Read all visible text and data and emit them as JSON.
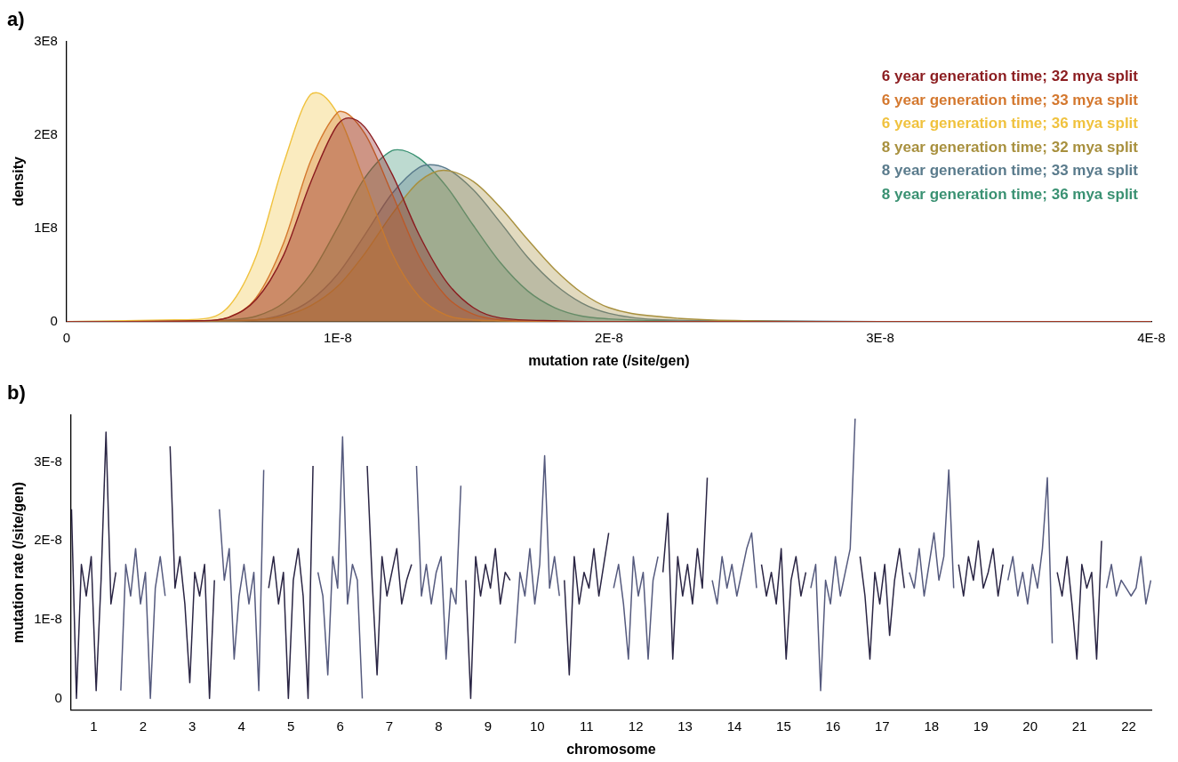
{
  "chart_data": [
    {
      "type": "area",
      "title": "a)",
      "xlabel": "mutation rate (/site/gen)",
      "ylabel": "density",
      "legend": "top right",
      "xlim": [
        0,
        4e-08
      ],
      "ylim": [
        0,
        300000000.0
      ],
      "xticks": [
        0,
        {
          "value": 1e-08,
          "label": "1E-8"
        },
        {
          "value": 2e-08,
          "label": "2E-8"
        },
        {
          "value": 3e-08,
          "label": "3E-8"
        },
        {
          "value": 4e-08,
          "label": "4E-8"
        }
      ],
      "yticks": [
        0,
        {
          "value": 100000000.0,
          "label": "1E8"
        },
        {
          "value": 200000000.0,
          "label": "2E8"
        },
        {
          "value": 300000000.0,
          "label": "3E8"
        }
      ],
      "series": [
        {
          "name": "6 year generation time; 32 mya split",
          "color": "#8b1c1f",
          "x": [
            0,
            5e-09,
            6e-09,
            7e-09,
            8e-09,
            9e-09,
            1e-08,
            1.04e-08,
            1.1e-08,
            1.2e-08,
            1.3e-08,
            1.4e-08,
            1.5e-08,
            1.6e-08,
            1.8e-08,
            2e-08,
            4e-08
          ],
          "values": [
            0,
            1000000.0,
            5000000.0,
            24000000.0,
            71000000.0,
            149000000.0,
            211000000.0,
            218000000.0,
            208000000.0,
            158000000.0,
            93000000.0,
            43000000.0,
            15000000.0,
            4000000.0,
            1000000.0,
            0,
            0
          ]
        },
        {
          "name": "6 year generation time; 33 mya split",
          "color": "#d4782e",
          "x": [
            0,
            5e-09,
            6e-09,
            7e-09,
            8e-09,
            9e-09,
            1e-08,
            1.01e-08,
            1.1e-08,
            1.2e-08,
            1.3e-08,
            1.4e-08,
            1.5e-08,
            1.6e-08,
            1.8e-08,
            2e-08,
            4e-08
          ],
          "values": [
            0,
            1000000.0,
            5000000.0,
            26000000.0,
            84000000.0,
            172000000.0,
            224000000.0,
            225000000.0,
            201000000.0,
            137000000.0,
            70000000.0,
            27000000.0,
            8000000.0,
            2000000.0,
            0,
            0,
            0
          ]
        },
        {
          "name": "6 year generation time; 36 mya split",
          "color": "#f0c23e",
          "x": [
            0,
            4e-09,
            5e-09,
            6e-09,
            7e-09,
            8e-09,
            9e-09,
            9.2e-09,
            1e-08,
            1.1e-08,
            1.2e-08,
            1.3e-08,
            1.4e-08,
            1.5e-08,
            1.6e-08,
            2e-08,
            4e-08
          ],
          "values": [
            0,
            2000000.0,
            3000000.0,
            17000000.0,
            71000000.0,
            169000000.0,
            243000000.0,
            245000000.0,
            222000000.0,
            149000000.0,
            73000000.0,
            27000000.0,
            7000000.0,
            2000000.0,
            1000000.0,
            0,
            0
          ]
        },
        {
          "name": "8 year generation time; 32 mya split",
          "color": "#a8903e",
          "x": [
            0,
            6e-09,
            7e-09,
            8e-09,
            9e-09,
            1e-08,
            1.1e-08,
            1.2e-08,
            1.3e-08,
            1.39e-08,
            1.5e-08,
            1.6e-08,
            1.7e-08,
            1.8e-08,
            1.9e-08,
            2e-08,
            2.2e-08,
            2.5e-08,
            3e-08,
            4e-08
          ],
          "values": [
            0,
            1000000.0,
            2000000.0,
            6000000.0,
            17000000.0,
            38000000.0,
            73000000.0,
            115000000.0,
            150000000.0,
            162000000.0,
            150000000.0,
            122000000.0,
            88000000.0,
            56000000.0,
            31000000.0,
            15000000.0,
            5000000.0,
            1000000.0,
            0,
            0
          ]
        },
        {
          "name": "8 year generation time; 33 mya split",
          "color": "#5a7b8c",
          "x": [
            0,
            6e-09,
            7e-09,
            8e-09,
            9e-09,
            1e-08,
            1.1e-08,
            1.2e-08,
            1.3e-08,
            1.34e-08,
            1.4e-08,
            1.5e-08,
            1.6e-08,
            1.7e-08,
            1.8e-08,
            1.9e-08,
            2e-08,
            2.2e-08,
            2.5e-08,
            3e-08,
            4e-08
          ],
          "values": [
            0,
            1000000.0,
            2000000.0,
            8000000.0,
            23000000.0,
            51000000.0,
            93000000.0,
            137000000.0,
            165000000.0,
            168000000.0,
            164000000.0,
            141000000.0,
            106000000.0,
            69000000.0,
            40000000.0,
            20000000.0,
            9000000.0,
            2000000.0,
            1000000.0,
            0,
            0
          ]
        },
        {
          "name": "8 year generation time; 36 mya split",
          "color": "#3a9172",
          "x": [
            0,
            5e-09,
            6e-09,
            7e-09,
            8e-09,
            9e-09,
            1e-08,
            1.1e-08,
            1.2e-08,
            1.22e-08,
            1.3e-08,
            1.4e-08,
            1.5e-08,
            1.6e-08,
            1.7e-08,
            1.8e-08,
            1.9e-08,
            2e-08,
            2.2e-08,
            2.5e-08,
            4e-08
          ],
          "values": [
            0,
            1000000.0,
            2000000.0,
            6000000.0,
            20000000.0,
            51000000.0,
            101000000.0,
            154000000.0,
            183000000.0,
            184000000.0,
            175000000.0,
            145000000.0,
            103000000.0,
            63000000.0,
            33000000.0,
            15000000.0,
            6000000.0,
            3000000.0,
            1000000.0,
            0,
            0
          ]
        }
      ]
    },
    {
      "type": "line",
      "title": "b)",
      "xlabel": "chromosome",
      "ylabel": "mutation rate (/site/gen)",
      "xlim": [
        0.54,
        22.46
      ],
      "ylim": [
        -1.5e-09,
        3.6e-08
      ],
      "xticks": [
        1,
        2,
        3,
        4,
        5,
        6,
        7,
        8,
        9,
        10,
        11,
        12,
        13,
        14,
        15,
        16,
        17,
        18,
        19,
        20,
        21,
        22
      ],
      "yticks": [
        0,
        {
          "value": 1e-08,
          "label": "1E-8"
        },
        {
          "value": 2e-08,
          "label": "2E-8"
        },
        {
          "value": 3e-08,
          "label": "3E-8"
        }
      ],
      "series": [
        {
          "color": "#2a2544",
          "x": [
            0.55,
            0.65,
            0.75,
            0.85,
            0.95,
            1.05,
            1.15,
            1.25,
            1.35,
            1.45
          ],
          "values": [
            2.4e-08,
            0,
            1.7e-08,
            1.3e-08,
            1.8e-08,
            1e-09,
            1.5e-08,
            3.38e-08,
            1.2e-08,
            1.6e-08
          ]
        },
        {
          "color": "#555a7e",
          "x": [
            1.55,
            1.65,
            1.75,
            1.85,
            1.95,
            2.05,
            2.15,
            2.25,
            2.35,
            2.45
          ],
          "values": [
            1e-09,
            1.7e-08,
            1.3e-08,
            1.9e-08,
            1.2e-08,
            1.6e-08,
            0,
            1.4e-08,
            1.8e-08,
            1.3e-08
          ]
        },
        {
          "color": "#2a2544",
          "x": [
            2.55,
            2.65,
            2.75,
            2.85,
            2.95,
            3.05,
            3.15,
            3.25,
            3.35,
            3.45
          ],
          "values": [
            3.2e-08,
            1.4e-08,
            1.8e-08,
            1.2e-08,
            2e-09,
            1.6e-08,
            1.3e-08,
            1.7e-08,
            0,
            1.5e-08
          ]
        },
        {
          "color": "#555a7e",
          "x": [
            3.55,
            3.65,
            3.75,
            3.85,
            3.95,
            4.05,
            4.15,
            4.25,
            4.35,
            4.45
          ],
          "values": [
            2.4e-08,
            1.5e-08,
            1.9e-08,
            5e-09,
            1.3e-08,
            1.7e-08,
            1.2e-08,
            1.6e-08,
            1e-09,
            2.9e-08
          ]
        },
        {
          "color": "#2a2544",
          "x": [
            4.55,
            4.65,
            4.75,
            4.85,
            4.95,
            5.05,
            5.15,
            5.25,
            5.35,
            5.45
          ],
          "values": [
            1.4e-08,
            1.8e-08,
            1.2e-08,
            1.6e-08,
            0,
            1.5e-08,
            1.9e-08,
            1.3e-08,
            0,
            2.95e-08
          ]
        },
        {
          "color": "#555a7e",
          "x": [
            5.55,
            5.65,
            5.75,
            5.85,
            5.95,
            6.05,
            6.15,
            6.25,
            6.35,
            6.45
          ],
          "values": [
            1.6e-08,
            1.3e-08,
            3e-09,
            1.8e-08,
            1.4e-08,
            3.32e-08,
            1.2e-08,
            1.7e-08,
            1.5e-08,
            0
          ]
        },
        {
          "color": "#2a2544",
          "x": [
            6.55,
            6.65,
            6.75,
            6.85,
            6.95,
            7.05,
            7.15,
            7.25,
            7.35,
            7.45
          ],
          "values": [
            2.95e-08,
            1.5e-08,
            3e-09,
            1.8e-08,
            1.3e-08,
            1.6e-08,
            1.9e-08,
            1.2e-08,
            1.5e-08,
            1.7e-08
          ]
        },
        {
          "color": "#555a7e",
          "x": [
            7.55,
            7.65,
            7.75,
            7.85,
            7.95,
            8.05,
            8.15,
            8.25,
            8.35,
            8.45
          ],
          "values": [
            2.95e-08,
            1.3e-08,
            1.7e-08,
            1.2e-08,
            1.6e-08,
            1.8e-08,
            5e-09,
            1.4e-08,
            1.2e-08,
            2.7e-08
          ]
        },
        {
          "color": "#2a2544",
          "x": [
            8.55,
            8.65,
            8.75,
            8.85,
            8.95,
            9.05,
            9.15,
            9.25,
            9.35,
            9.45
          ],
          "values": [
            1.5e-08,
            0,
            1.8e-08,
            1.3e-08,
            1.7e-08,
            1.4e-08,
            1.9e-08,
            1.2e-08,
            1.6e-08,
            1.5e-08
          ]
        },
        {
          "color": "#555a7e",
          "x": [
            9.55,
            9.65,
            9.75,
            9.85,
            9.95,
            10.05,
            10.15,
            10.25,
            10.35,
            10.45
          ],
          "values": [
            7e-09,
            1.6e-08,
            1.3e-08,
            1.9e-08,
            1.2e-08,
            1.7e-08,
            3.08e-08,
            1.4e-08,
            1.8e-08,
            1.3e-08
          ]
        },
        {
          "color": "#2a2544",
          "x": [
            10.55,
            10.65,
            10.75,
            10.85,
            10.95,
            11.05,
            11.15,
            11.25,
            11.35,
            11.45
          ],
          "values": [
            1.5e-08,
            3e-09,
            1.8e-08,
            1.2e-08,
            1.6e-08,
            1.4e-08,
            1.9e-08,
            1.3e-08,
            1.7e-08,
            2.1e-08
          ]
        },
        {
          "color": "#555a7e",
          "x": [
            11.55,
            11.65,
            11.75,
            11.85,
            11.95,
            12.05,
            12.15,
            12.25,
            12.35,
            12.45
          ],
          "values": [
            1.4e-08,
            1.7e-08,
            1.2e-08,
            5e-09,
            1.8e-08,
            1.3e-08,
            1.6e-08,
            5e-09,
            1.5e-08,
            1.8e-08
          ]
        },
        {
          "color": "#2a2544",
          "x": [
            12.55,
            12.65,
            12.75,
            12.85,
            12.95,
            13.05,
            13.15,
            13.25,
            13.35,
            13.45
          ],
          "values": [
            1.6e-08,
            2.35e-08,
            5e-09,
            1.8e-08,
            1.3e-08,
            1.7e-08,
            1.2e-08,
            1.9e-08,
            1.4e-08,
            2.8e-08
          ]
        },
        {
          "color": "#555a7e",
          "x": [
            13.55,
            13.65,
            13.75,
            13.85,
            13.95,
            14.05,
            14.15,
            14.25,
            14.35,
            14.45
          ],
          "values": [
            1.5e-08,
            1.2e-08,
            1.8e-08,
            1.4e-08,
            1.7e-08,
            1.3e-08,
            1.6e-08,
            1.9e-08,
            2.1e-08,
            1.4e-08
          ]
        },
        {
          "color": "#2a2544",
          "x": [
            14.55,
            14.65,
            14.75,
            14.85,
            14.95,
            15.05,
            15.15,
            15.25,
            15.35,
            15.45
          ],
          "values": [
            1.7e-08,
            1.3e-08,
            1.6e-08,
            1.2e-08,
            1.9e-08,
            5e-09,
            1.5e-08,
            1.8e-08,
            1.3e-08,
            1.6e-08
          ]
        },
        {
          "color": "#555a7e",
          "x": [
            15.55,
            15.65,
            15.75,
            15.85,
            15.95,
            16.05,
            16.15,
            16.25,
            16.35,
            16.45
          ],
          "values": [
            1.4e-08,
            1.7e-08,
            1e-09,
            1.5e-08,
            1.2e-08,
            1.8e-08,
            1.3e-08,
            1.6e-08,
            1.9e-08,
            3.55e-08
          ]
        },
        {
          "color": "#2a2544",
          "x": [
            16.55,
            16.65,
            16.75,
            16.85,
            16.95,
            17.05,
            17.15,
            17.25,
            17.35,
            17.45
          ],
          "values": [
            1.8e-08,
            1.3e-08,
            5e-09,
            1.6e-08,
            1.2e-08,
            1.7e-08,
            8e-09,
            1.5e-08,
            1.9e-08,
            1.4e-08
          ]
        },
        {
          "color": "#555a7e",
          "x": [
            17.55,
            17.65,
            17.75,
            17.85,
            17.95,
            18.05,
            18.15,
            18.25,
            18.35,
            18.45
          ],
          "values": [
            1.6e-08,
            1.4e-08,
            1.9e-08,
            1.3e-08,
            1.7e-08,
            2.1e-08,
            1.5e-08,
            1.8e-08,
            2.9e-08,
            1.4e-08
          ]
        },
        {
          "color": "#2a2544",
          "x": [
            18.55,
            18.65,
            18.75,
            18.85,
            18.95,
            19.05,
            19.15,
            19.25,
            19.35,
            19.45
          ],
          "values": [
            1.7e-08,
            1.3e-08,
            1.8e-08,
            1.5e-08,
            2e-08,
            1.4e-08,
            1.6e-08,
            1.9e-08,
            1.3e-08,
            1.7e-08
          ]
        },
        {
          "color": "#555a7e",
          "x": [
            19.55,
            19.65,
            19.75,
            19.85,
            19.95,
            20.05,
            20.15,
            20.25,
            20.35,
            20.45
          ],
          "values": [
            1.5e-08,
            1.8e-08,
            1.3e-08,
            1.6e-08,
            1.2e-08,
            1.7e-08,
            1.4e-08,
            1.9e-08,
            2.8e-08,
            7e-09
          ]
        },
        {
          "color": "#2a2544",
          "x": [
            20.55,
            20.65,
            20.75,
            20.85,
            20.95,
            21.05,
            21.15,
            21.25,
            21.35,
            21.45
          ],
          "values": [
            1.6e-08,
            1.3e-08,
            1.8e-08,
            1.2e-08,
            5e-09,
            1.7e-08,
            1.4e-08,
            1.6e-08,
            5e-09,
            2e-08
          ]
        },
        {
          "color": "#555a7e",
          "x": [
            21.55,
            21.65,
            21.75,
            21.85,
            21.95,
            22.05,
            22.15,
            22.25,
            22.35,
            22.45
          ],
          "values": [
            1.4e-08,
            1.7e-08,
            1.3e-08,
            1.5e-08,
            1.4e-08,
            1.3e-08,
            1.4e-08,
            1.8e-08,
            1.2e-08,
            1.5e-08
          ]
        }
      ]
    }
  ]
}
